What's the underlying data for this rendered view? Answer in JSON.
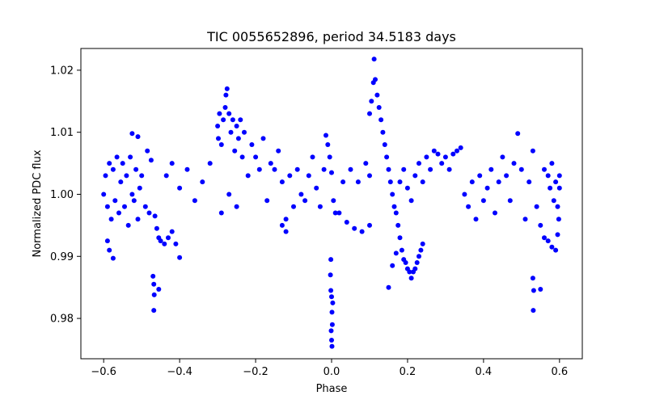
{
  "chart_data": {
    "type": "scatter",
    "title": "TIC 0055652896, period 34.5183 days",
    "xlabel": "Phase",
    "ylabel": "Normalized PDC flux",
    "xlim": [
      -0.66,
      0.66
    ],
    "ylim": [
      0.9735,
      1.0235
    ],
    "xticks": [
      -0.6,
      -0.4,
      -0.2,
      0.0,
      0.2,
      0.4,
      0.6
    ],
    "xtick_labels": [
      "−0.6",
      "−0.4",
      "−0.2",
      "0.0",
      "0.2",
      "0.4",
      "0.6"
    ],
    "yticks": [
      0.98,
      0.99,
      1.0,
      1.01,
      1.02
    ],
    "ytick_labels": [
      "0.98",
      "0.99",
      "1.00",
      "1.01",
      "1.02"
    ],
    "grid": false,
    "legend": "none",
    "series": [
      {
        "color": "#0000ff",
        "points": [
          [
            -0.6,
            1.0
          ],
          [
            -0.595,
            1.003
          ],
          [
            -0.59,
            0.998
          ],
          [
            -0.585,
            1.005
          ],
          [
            -0.58,
            0.996
          ],
          [
            -0.575,
            1.004
          ],
          [
            -0.57,
            0.999
          ],
          [
            -0.565,
            1.006
          ],
          [
            -0.56,
            0.997
          ],
          [
            -0.555,
            1.002
          ],
          [
            -0.55,
            1.005
          ],
          [
            -0.545,
            0.998
          ],
          [
            -0.54,
            1.003
          ],
          [
            -0.535,
            0.995
          ],
          [
            -0.53,
            1.006
          ],
          [
            -0.525,
            1.0
          ],
          [
            -0.52,
            0.999
          ],
          [
            -0.515,
            1.004
          ],
          [
            -0.51,
            0.996
          ],
          [
            -0.505,
            1.001
          ],
          [
            -0.59,
            0.9925
          ],
          [
            -0.585,
            0.991
          ],
          [
            -0.575,
            0.9897
          ],
          [
            -0.525,
            1.0098
          ],
          [
            -0.51,
            1.0093
          ],
          [
            -0.5,
            1.003
          ],
          [
            -0.49,
            0.998
          ],
          [
            -0.485,
            1.007
          ],
          [
            -0.48,
            0.997
          ],
          [
            -0.475,
            1.0055
          ],
          [
            -0.47,
            0.9868
          ],
          [
            -0.468,
            0.9855
          ],
          [
            -0.467,
            0.9838
          ],
          [
            -0.468,
            0.9813
          ],
          [
            -0.455,
            0.9847
          ],
          [
            -0.465,
            0.9965
          ],
          [
            -0.46,
            0.9945
          ],
          [
            -0.455,
            0.993
          ],
          [
            -0.45,
            0.9925
          ],
          [
            -0.44,
            0.992
          ],
          [
            -0.43,
            0.993
          ],
          [
            -0.42,
            0.994
          ],
          [
            -0.41,
            0.992
          ],
          [
            -0.4,
            0.9898
          ],
          [
            -0.435,
            1.003
          ],
          [
            -0.42,
            1.005
          ],
          [
            -0.4,
            1.001
          ],
          [
            -0.38,
            1.004
          ],
          [
            -0.36,
            0.999
          ],
          [
            -0.34,
            1.002
          ],
          [
            -0.32,
            1.005
          ],
          [
            -0.3,
            1.011
          ],
          [
            -0.298,
            1.009
          ],
          [
            -0.295,
            1.013
          ],
          [
            -0.29,
            1.008
          ],
          [
            -0.285,
            1.012
          ],
          [
            -0.28,
            1.014
          ],
          [
            -0.278,
            1.016
          ],
          [
            -0.275,
            1.017
          ],
          [
            -0.27,
            1.013
          ],
          [
            -0.265,
            1.01
          ],
          [
            -0.26,
            1.012
          ],
          [
            -0.255,
            1.007
          ],
          [
            -0.25,
            1.011
          ],
          [
            -0.245,
            1.009
          ],
          [
            -0.24,
            1.012
          ],
          [
            -0.235,
            1.006
          ],
          [
            -0.23,
            1.01
          ],
          [
            -0.29,
            0.997
          ],
          [
            -0.27,
            1.0
          ],
          [
            -0.25,
            0.998
          ],
          [
            -0.22,
            1.003
          ],
          [
            -0.21,
            1.008
          ],
          [
            -0.2,
            1.006
          ],
          [
            -0.19,
            1.004
          ],
          [
            -0.18,
            1.009
          ],
          [
            -0.17,
            0.999
          ],
          [
            -0.16,
            1.005
          ],
          [
            -0.15,
            1.004
          ],
          [
            -0.14,
            1.007
          ],
          [
            -0.13,
            1.002
          ],
          [
            -0.12,
            0.996
          ],
          [
            -0.11,
            1.003
          ],
          [
            -0.1,
            0.998
          ],
          [
            -0.09,
            1.004
          ],
          [
            -0.08,
            1.0
          ],
          [
            -0.07,
            0.999
          ],
          [
            -0.06,
            1.003
          ],
          [
            -0.05,
            1.006
          ],
          [
            -0.04,
            1.001
          ],
          [
            -0.03,
            0.998
          ],
          [
            -0.02,
            1.004
          ],
          [
            -0.015,
            1.0095
          ],
          [
            -0.01,
            1.008
          ],
          [
            -0.005,
            1.006
          ],
          [
            0.0,
            1.0035
          ],
          [
            0.005,
            0.999
          ],
          [
            0.01,
            0.997
          ],
          [
            -0.12,
            0.994
          ],
          [
            -0.13,
            0.995
          ],
          [
            -0.002,
            0.9895
          ],
          [
            -0.003,
            0.987
          ],
          [
            0.0,
            0.9835
          ],
          [
            0.001,
            0.981
          ],
          [
            0.002,
            0.979
          ],
          [
            0.0,
            0.9765
          ],
          [
            0.001,
            0.9755
          ],
          [
            -0.002,
            0.9845
          ],
          [
            0.003,
            0.9825
          ],
          [
            -0.001,
            0.978
          ],
          [
            0.02,
            0.997
          ],
          [
            0.04,
            0.9955
          ],
          [
            0.06,
            0.9945
          ],
          [
            0.08,
            0.994
          ],
          [
            0.1,
            0.995
          ],
          [
            0.03,
            1.002
          ],
          [
            0.05,
            1.004
          ],
          [
            0.07,
            1.002
          ],
          [
            0.09,
            1.005
          ],
          [
            0.1,
            1.003
          ],
          [
            0.1,
            1.013
          ],
          [
            0.105,
            1.015
          ],
          [
            0.11,
            1.018
          ],
          [
            0.112,
            1.0218
          ],
          [
            0.115,
            1.0185
          ],
          [
            0.12,
            1.016
          ],
          [
            0.125,
            1.014
          ],
          [
            0.13,
            1.012
          ],
          [
            0.135,
            1.01
          ],
          [
            0.14,
            1.008
          ],
          [
            0.145,
            1.006
          ],
          [
            0.15,
            1.004
          ],
          [
            0.155,
            1.002
          ],
          [
            0.16,
            1.0
          ],
          [
            0.165,
            0.998
          ],
          [
            0.17,
            0.997
          ],
          [
            0.175,
            0.995
          ],
          [
            0.18,
            0.993
          ],
          [
            0.185,
            0.991
          ],
          [
            0.19,
            0.9895
          ],
          [
            0.195,
            0.989
          ],
          [
            0.2,
            0.988
          ],
          [
            0.205,
            0.9875
          ],
          [
            0.21,
            0.9865
          ],
          [
            0.215,
            0.9875
          ],
          [
            0.22,
            0.988
          ],
          [
            0.225,
            0.989
          ],
          [
            0.23,
            0.99
          ],
          [
            0.235,
            0.991
          ],
          [
            0.24,
            0.992
          ],
          [
            0.15,
            0.985
          ],
          [
            0.16,
            0.9885
          ],
          [
            0.17,
            0.9905
          ],
          [
            0.18,
            1.002
          ],
          [
            0.19,
            1.004
          ],
          [
            0.2,
            1.001
          ],
          [
            0.21,
            0.999
          ],
          [
            0.22,
            1.003
          ],
          [
            0.23,
            1.005
          ],
          [
            0.24,
            1.002
          ],
          [
            0.25,
            1.006
          ],
          [
            0.26,
            1.004
          ],
          [
            0.27,
            1.007
          ],
          [
            0.28,
            1.0065
          ],
          [
            0.29,
            1.005
          ],
          [
            0.3,
            1.006
          ],
          [
            0.31,
            1.004
          ],
          [
            0.32,
            1.0065
          ],
          [
            0.33,
            1.007
          ],
          [
            0.34,
            1.0075
          ],
          [
            0.35,
            1.0
          ],
          [
            0.36,
            0.998
          ],
          [
            0.37,
            1.002
          ],
          [
            0.38,
            0.996
          ],
          [
            0.39,
            1.003
          ],
          [
            0.4,
            0.999
          ],
          [
            0.41,
            1.001
          ],
          [
            0.42,
            1.004
          ],
          [
            0.43,
            0.997
          ],
          [
            0.44,
            1.002
          ],
          [
            0.45,
            1.006
          ],
          [
            0.46,
            1.003
          ],
          [
            0.47,
            0.999
          ],
          [
            0.48,
            1.005
          ],
          [
            0.49,
            1.0098
          ],
          [
            0.5,
            1.004
          ],
          [
            0.51,
            0.996
          ],
          [
            0.52,
            1.002
          ],
          [
            0.53,
            1.007
          ],
          [
            0.54,
            0.998
          ],
          [
            0.53,
            0.9865
          ],
          [
            0.532,
            0.9845
          ],
          [
            0.531,
            0.9813
          ],
          [
            0.55,
            0.9847
          ],
          [
            0.55,
            0.995
          ],
          [
            0.56,
            0.993
          ],
          [
            0.57,
            0.9925
          ],
          [
            0.58,
            0.9915
          ],
          [
            0.59,
            0.991
          ],
          [
            0.595,
            0.9935
          ],
          [
            0.56,
            1.004
          ],
          [
            0.57,
            1.003
          ],
          [
            0.58,
            1.005
          ],
          [
            0.59,
            1.002
          ],
          [
            0.595,
            0.998
          ],
          [
            0.6,
            1.001
          ],
          [
            0.6,
            1.003
          ],
          [
            0.598,
            0.996
          ],
          [
            0.585,
            0.999
          ],
          [
            0.575,
            1.001
          ]
        ]
      }
    ]
  }
}
